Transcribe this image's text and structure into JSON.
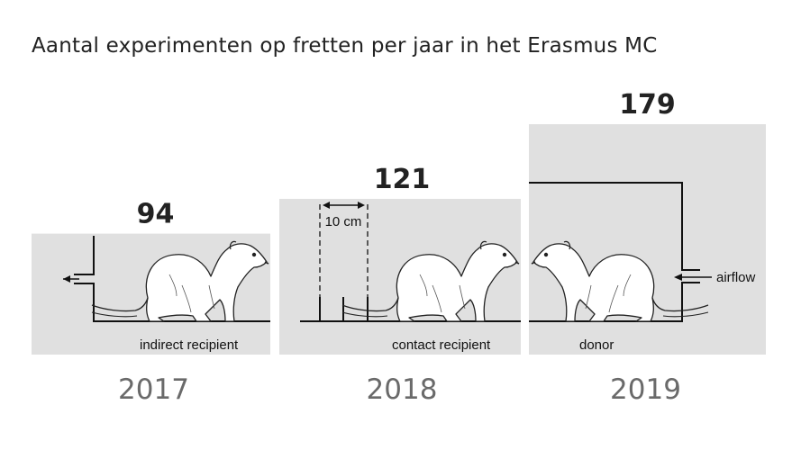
{
  "title": "Aantal experimenten op fretten per jaar in het Erasmus MC",
  "chart_data": {
    "type": "bar",
    "title": "Aantal experimenten op fretten per jaar in het Erasmus MC",
    "categories": [
      "2017",
      "2018",
      "2019"
    ],
    "values": [
      94,
      121,
      179
    ],
    "value_labels": [
      "94",
      "121",
      "179"
    ],
    "xlabel": "",
    "ylabel": "",
    "ylim": [
      0,
      179
    ],
    "grid": false,
    "bar_color": "#e0e0e0",
    "annotations": [
      "indirect recipient",
      "contact recipient",
      "donor",
      "10 cm",
      "airflow"
    ]
  }
}
